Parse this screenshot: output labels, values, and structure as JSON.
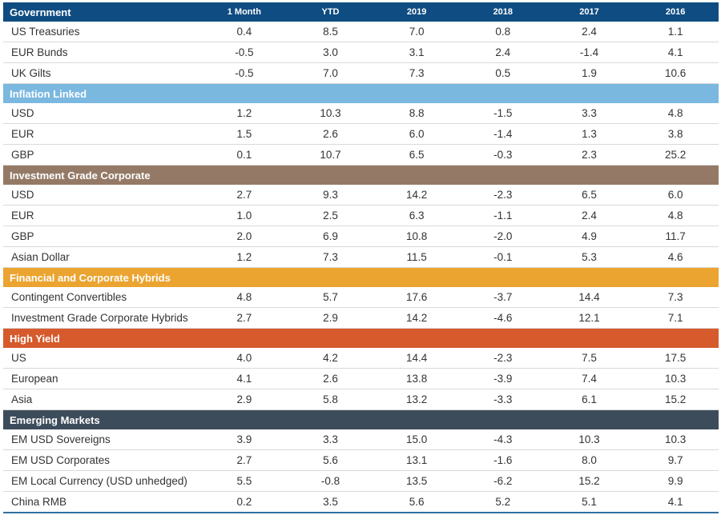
{
  "columns": [
    "1 Month",
    "YTD",
    "2019",
    "2018",
    "2017",
    "2016"
  ],
  "sections": [
    {
      "title": "Government",
      "color": "#0f4c81",
      "show_columns": true,
      "rows": [
        {
          "name": "US Treasuries",
          "values": [
            "0.4",
            "8.5",
            "7.0",
            "0.8",
            "2.4",
            "1.1"
          ]
        },
        {
          "name": "EUR Bunds",
          "values": [
            "-0.5",
            "3.0",
            "3.1",
            "2.4",
            "-1.4",
            "4.1"
          ]
        },
        {
          "name": "UK Gilts",
          "values": [
            "-0.5",
            "7.0",
            "7.3",
            "0.5",
            "1.9",
            "10.6"
          ]
        }
      ]
    },
    {
      "title": "Inflation Linked",
      "color": "#7ab8e0",
      "rows": [
        {
          "name": "USD",
          "values": [
            "1.2",
            "10.3",
            "8.8",
            "-1.5",
            "3.3",
            "4.8"
          ]
        },
        {
          "name": "EUR",
          "values": [
            "1.5",
            "2.6",
            "6.0",
            "-1.4",
            "1.3",
            "3.8"
          ]
        },
        {
          "name": "GBP",
          "values": [
            "0.1",
            "10.7",
            "6.5",
            "-0.3",
            "2.3",
            "25.2"
          ]
        }
      ]
    },
    {
      "title": "Investment Grade Corporate",
      "color": "#947a66",
      "rows": [
        {
          "name": "USD",
          "values": [
            "2.7",
            "9.3",
            "14.2",
            "-2.3",
            "6.5",
            "6.0"
          ]
        },
        {
          "name": "EUR",
          "values": [
            "1.0",
            "2.5",
            "6.3",
            "-1.1",
            "2.4",
            "4.8"
          ]
        },
        {
          "name": "GBP",
          "values": [
            "2.0",
            "6.9",
            "10.8",
            "-2.0",
            "4.9",
            "11.7"
          ]
        },
        {
          "name": "Asian Dollar",
          "values": [
            "1.2",
            "7.3",
            "11.5",
            "-0.1",
            "5.3",
            "4.6"
          ]
        }
      ]
    },
    {
      "title": "Financial and Corporate Hybrids",
      "color": "#eba430",
      "rows": [
        {
          "name": "Contingent Convertibles",
          "values": [
            "4.8",
            "5.7",
            "17.6",
            "-3.7",
            "14.4",
            "7.3"
          ]
        },
        {
          "name": "Investment Grade Corporate Hybrids",
          "values": [
            "2.7",
            "2.9",
            "14.2",
            "-4.6",
            "12.1",
            "7.1"
          ]
        }
      ]
    },
    {
      "title": "High Yield",
      "color": "#d65a2c",
      "rows": [
        {
          "name": "US",
          "values": [
            "4.0",
            "4.2",
            "14.4",
            "-2.3",
            "7.5",
            "17.5"
          ]
        },
        {
          "name": "European",
          "values": [
            "4.1",
            "2.6",
            "13.8",
            "-3.9",
            "7.4",
            "10.3"
          ]
        },
        {
          "name": "Asia",
          "values": [
            "2.9",
            "5.8",
            "13.2",
            "-3.3",
            "6.1",
            "15.2"
          ]
        }
      ]
    },
    {
      "title": "Emerging Markets",
      "color": "#3d4c5b",
      "rows": [
        {
          "name": "EM USD Sovereigns",
          "values": [
            "3.9",
            "3.3",
            "15.0",
            "-4.3",
            "10.3",
            "10.3"
          ]
        },
        {
          "name": "EM USD Corporates",
          "values": [
            "2.7",
            "5.6",
            "13.1",
            "-1.6",
            "8.0",
            "9.7"
          ]
        },
        {
          "name": "EM Local Currency (USD unhedged)",
          "values": [
            "5.5",
            "-0.8",
            "13.5",
            "-6.2",
            "15.2",
            "9.9"
          ]
        },
        {
          "name": "China RMB",
          "values": [
            "0.2",
            "3.5",
            "5.6",
            "5.2",
            "5.1",
            "4.1"
          ]
        }
      ]
    }
  ],
  "chart_data": {
    "type": "table",
    "columns": [
      "1 Month",
      "YTD",
      "2019",
      "2018",
      "2017",
      "2016"
    ],
    "groups": [
      {
        "name": "Government",
        "rows": [
          {
            "name": "US Treasuries",
            "values": [
              0.4,
              8.5,
              7.0,
              0.8,
              2.4,
              1.1
            ]
          },
          {
            "name": "EUR Bunds",
            "values": [
              -0.5,
              3.0,
              3.1,
              2.4,
              -1.4,
              4.1
            ]
          },
          {
            "name": "UK Gilts",
            "values": [
              -0.5,
              7.0,
              7.3,
              0.5,
              1.9,
              10.6
            ]
          }
        ]
      },
      {
        "name": "Inflation Linked",
        "rows": [
          {
            "name": "USD",
            "values": [
              1.2,
              10.3,
              8.8,
              -1.5,
              3.3,
              4.8
            ]
          },
          {
            "name": "EUR",
            "values": [
              1.5,
              2.6,
              6.0,
              -1.4,
              1.3,
              3.8
            ]
          },
          {
            "name": "GBP",
            "values": [
              0.1,
              10.7,
              6.5,
              -0.3,
              2.3,
              25.2
            ]
          }
        ]
      },
      {
        "name": "Investment Grade Corporate",
        "rows": [
          {
            "name": "USD",
            "values": [
              2.7,
              9.3,
              14.2,
              -2.3,
              6.5,
              6.0
            ]
          },
          {
            "name": "EUR",
            "values": [
              1.0,
              2.5,
              6.3,
              -1.1,
              2.4,
              4.8
            ]
          },
          {
            "name": "GBP",
            "values": [
              2.0,
              6.9,
              10.8,
              -2.0,
              4.9,
              11.7
            ]
          },
          {
            "name": "Asian Dollar",
            "values": [
              1.2,
              7.3,
              11.5,
              -0.1,
              5.3,
              4.6
            ]
          }
        ]
      },
      {
        "name": "Financial and Corporate Hybrids",
        "rows": [
          {
            "name": "Contingent Convertibles",
            "values": [
              4.8,
              5.7,
              17.6,
              -3.7,
              14.4,
              7.3
            ]
          },
          {
            "name": "Investment Grade Corporate Hybrids",
            "values": [
              2.7,
              2.9,
              14.2,
              -4.6,
              12.1,
              7.1
            ]
          }
        ]
      },
      {
        "name": "High Yield",
        "rows": [
          {
            "name": "US",
            "values": [
              4.0,
              4.2,
              14.4,
              -2.3,
              7.5,
              17.5
            ]
          },
          {
            "name": "European",
            "values": [
              4.1,
              2.6,
              13.8,
              -3.9,
              7.4,
              10.3
            ]
          },
          {
            "name": "Asia",
            "values": [
              2.9,
              5.8,
              13.2,
              -3.3,
              6.1,
              15.2
            ]
          }
        ]
      },
      {
        "name": "Emerging Markets",
        "rows": [
          {
            "name": "EM USD Sovereigns",
            "values": [
              3.9,
              3.3,
              15.0,
              -4.3,
              10.3,
              10.3
            ]
          },
          {
            "name": "EM USD Corporates",
            "values": [
              2.7,
              5.6,
              13.1,
              -1.6,
              8.0,
              9.7
            ]
          },
          {
            "name": "EM Local Currency (USD unhedged)",
            "values": [
              5.5,
              -0.8,
              13.5,
              -6.2,
              15.2,
              9.9
            ]
          },
          {
            "name": "China RMB",
            "values": [
              0.2,
              3.5,
              5.6,
              5.2,
              5.1,
              4.1
            ]
          }
        ]
      }
    ]
  }
}
